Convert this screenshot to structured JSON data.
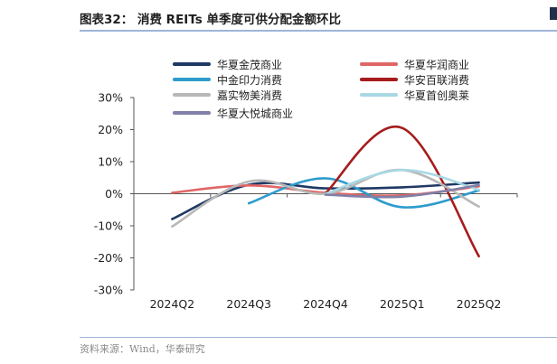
{
  "title": "图表32：  消费 REITs 单季度可供分配金额环比",
  "source": "资料来源：Wind，华泰研究",
  "chart_data": {
    "type": "line",
    "categories": [
      "2024Q2",
      "2024Q3",
      "2024Q4",
      "2025Q1",
      "2025Q2"
    ],
    "yticks": [
      "30%",
      "20%",
      "10%",
      "0%",
      "-10%",
      "-20%",
      "-30%"
    ],
    "ylim": [
      -30,
      30
    ],
    "series": [
      {
        "name": "华夏金茂商业",
        "color": "#1f3864",
        "values": [
          -7.9,
          2.8,
          1.7,
          2.0,
          3.5
        ]
      },
      {
        "name": "华夏华润商业",
        "color": "#e06666",
        "values": [
          0.3,
          2.6,
          0.3,
          -0.5,
          2.3
        ]
      },
      {
        "name": "中金印力消费",
        "color": "#2e9bcc",
        "values": [
          null,
          -3.0,
          4.8,
          -4.2,
          1.0
        ]
      },
      {
        "name": "华安百联消费",
        "color": "#a61c1c",
        "values": [
          null,
          null,
          0.2,
          20.5,
          -19.5
        ]
      },
      {
        "name": "嘉实物美消费",
        "color": "#b8b8b8",
        "values": [
          -10.2,
          3.8,
          0.0,
          7.4,
          -4.0
        ]
      },
      {
        "name": "华夏首创奥莱",
        "color": "#a8d8e4",
        "values": [
          null,
          null,
          0.0,
          7.4,
          1.2
        ]
      },
      {
        "name": "华夏大悦城商业",
        "color": "#8080a8",
        "values": [
          null,
          null,
          -0.3,
          -0.9,
          2.7
        ]
      }
    ]
  }
}
